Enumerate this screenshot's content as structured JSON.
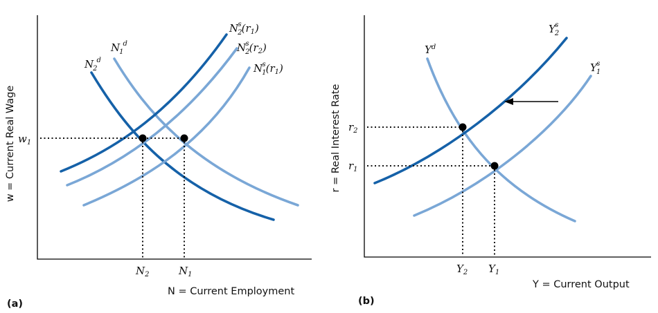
{
  "panel_a": {
    "tag": "(a)",
    "y_axis_label": "w = Current Real Wage",
    "x_axis_label": "N = Current Employment",
    "w1": "w",
    "w1_sub": "1",
    "n2": "N",
    "n2_sub": "2",
    "n1": "N",
    "n1_sub": "1",
    "curves": {
      "n2d": {
        "main": "N",
        "sub": "2",
        "sup": "d"
      },
      "n1d": {
        "main": "N",
        "sub": "1",
        "sup": "d"
      },
      "n2s_r1": {
        "main": "N",
        "sub": "2",
        "sup": "s",
        "arg": "(r",
        "arg_sub": "1",
        "close": ")"
      },
      "n2s_r2": {
        "main": "N",
        "sub": "2",
        "sup": "s",
        "arg": "(r",
        "arg_sub": "2",
        "close": ")"
      },
      "n1s_r1": {
        "main": "N",
        "sub": "1",
        "sup": "s",
        "arg": "(r",
        "arg_sub": "1",
        "close": ")"
      }
    }
  },
  "panel_b": {
    "tag": "(b)",
    "y_axis_label": "r = Real Interest Rate",
    "x_axis_label": "Y = Current Output",
    "r2": "r",
    "r2_sub": "2",
    "r1": "r",
    "r1_sub": "1",
    "y2": "Y",
    "y2_sub": "2",
    "y1": "Y",
    "y1_sub": "1",
    "curves": {
      "yd": {
        "main": "Y",
        "sup": "d"
      },
      "y2s": {
        "main": "Y",
        "sub": "2",
        "sup": "s"
      },
      "y1s": {
        "main": "Y",
        "sub": "1",
        "sup": "s"
      }
    }
  },
  "colors": {
    "dark_curve": "#1561a8",
    "light_curve": "#7aa7d6",
    "axis": "#000000"
  }
}
